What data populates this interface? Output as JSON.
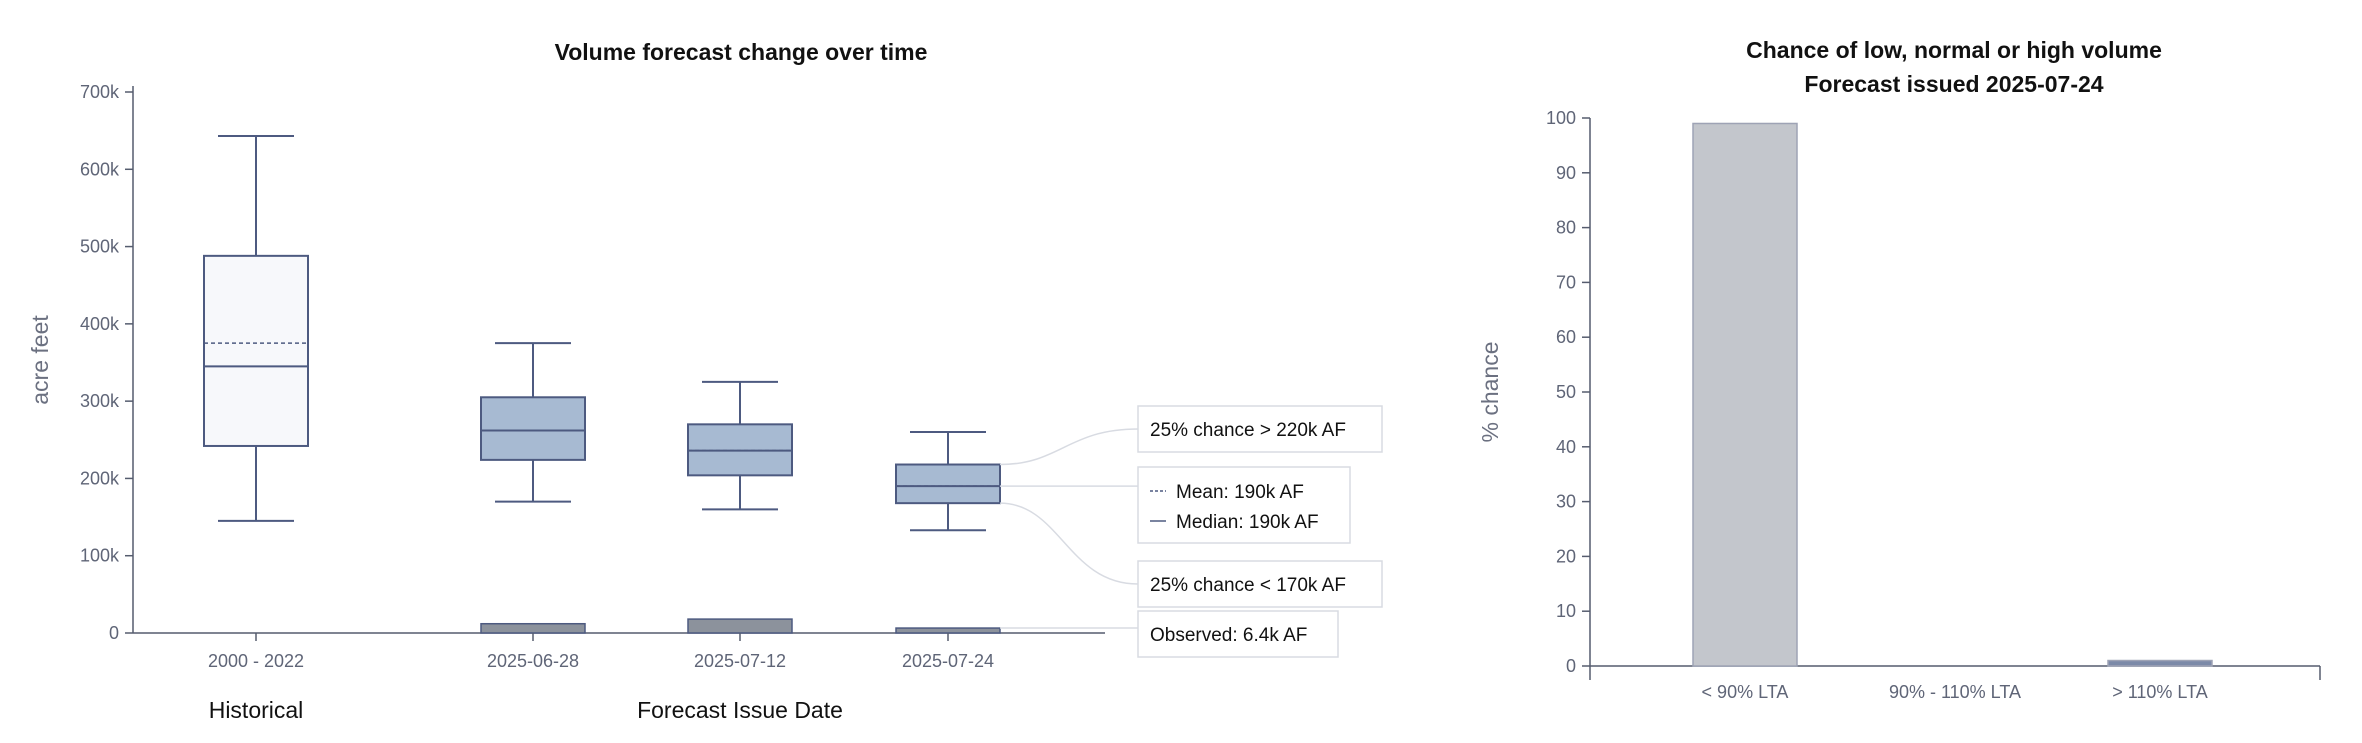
{
  "chart_data": [
    {
      "type": "boxplot",
      "title": "Volume forecast change over time",
      "ylabel": "acre feet",
      "ylim": [
        0,
        700000
      ],
      "yticks": [
        0,
        100000,
        200000,
        300000,
        400000,
        500000,
        600000,
        700000
      ],
      "ytick_labels": [
        "0",
        "100k",
        "200k",
        "300k",
        "400k",
        "500k",
        "600k",
        "700k"
      ],
      "group_labels": {
        "historical": "Historical",
        "forecast": "Forecast Issue Date"
      },
      "boxes": [
        {
          "label": "2000 - 2022",
          "kind": "historical",
          "min": 145000,
          "q1": 242000,
          "median": 345000,
          "mean": 375000,
          "q3": 488000,
          "max": 643000
        },
        {
          "label": "2025-06-28",
          "kind": "forecast",
          "min": 170000,
          "q1": 224000,
          "median": 262000,
          "mean": 262000,
          "q3": 305000,
          "max": 375000,
          "observed": 12000
        },
        {
          "label": "2025-07-12",
          "kind": "forecast",
          "min": 160000,
          "q1": 204000,
          "median": 236000,
          "mean": 236000,
          "q3": 270000,
          "max": 325000,
          "observed": 18000
        },
        {
          "label": "2025-07-24",
          "kind": "forecast",
          "min": 133000,
          "q1": 168000,
          "median": 190000,
          "mean": 190000,
          "q3": 218000,
          "max": 260000,
          "observed": 6400
        }
      ],
      "annotations": {
        "upper": "25% chance > 220k AF",
        "mean": "Mean: 190k AF",
        "median": "Median: 190k AF",
        "lower": "25% chance < 170k AF",
        "observed": "Observed: 6.4k AF"
      }
    },
    {
      "type": "bar",
      "title": "Chance of low, normal or high volume",
      "subtitle": "Forecast issued 2025-07-24",
      "ylabel": "% chance",
      "ylim": [
        0,
        100
      ],
      "yticks": [
        0,
        10,
        20,
        30,
        40,
        50,
        60,
        70,
        80,
        90,
        100
      ],
      "categories": [
        "< 90% LTA",
        "90% - 110% LTA",
        "> 110% LTA"
      ],
      "values": [
        99,
        0,
        1
      ],
      "colors": [
        "#c3c6cc",
        "#c3c6cc",
        "#7c8aa8"
      ]
    }
  ],
  "colors": {
    "box_stroke": "#4d5a80",
    "forecast_fill": "#a7bad2",
    "historical_fill": "#f7f8fb",
    "observed_fill": "#8c929c",
    "axis": "#555c6e",
    "tick_text": "#5f6577"
  }
}
